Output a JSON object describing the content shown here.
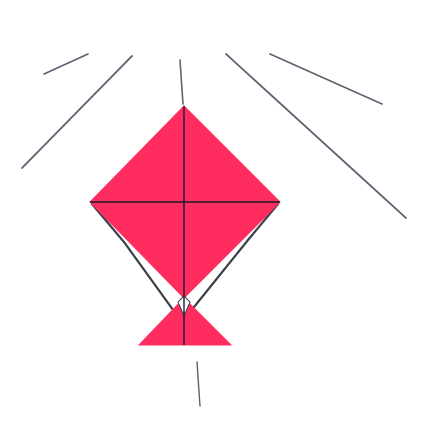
{
  "scene": {
    "background_color": "#ffffff",
    "kite_color": "#ff2d5f",
    "frame_color": "#1a1a2e",
    "ray_color": "#5a6270",
    "string_color": "#3a3f4a"
  },
  "icons": {
    "kite": "kite-icon",
    "rays": "radiating-lines"
  }
}
